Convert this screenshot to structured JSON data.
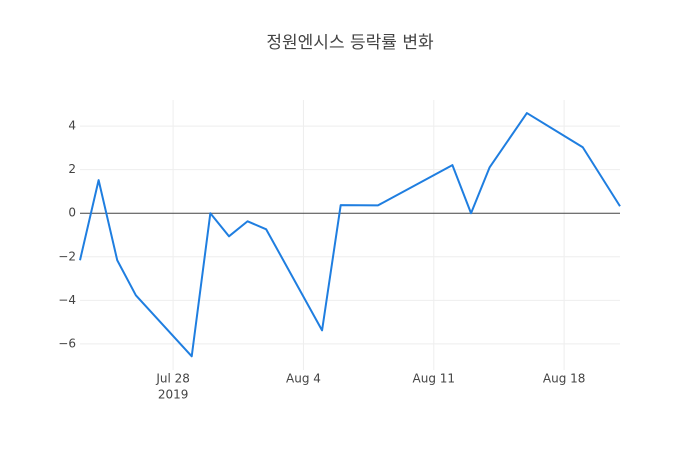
{
  "chart_data": {
    "type": "line",
    "title": "정원엔시스 등락률 변화",
    "x": [
      "2019-07-23",
      "2019-07-24",
      "2019-07-25",
      "2019-07-26",
      "2019-07-29",
      "2019-07-30",
      "2019-07-31",
      "2019-08-01",
      "2019-08-02",
      "2019-08-05",
      "2019-08-06",
      "2019-08-08",
      "2019-08-12",
      "2019-08-13",
      "2019-08-14",
      "2019-08-16",
      "2019-08-19",
      "2019-08-21"
    ],
    "series": [
      {
        "color": "#1f7ee0",
        "values": [
          -2.16,
          1.52,
          -2.16,
          -3.77,
          -6.57,
          0,
          -1.06,
          -0.37,
          -0.74,
          -5.38,
          0.37,
          0.36,
          2.21,
          0,
          2.11,
          4.6,
          3.03,
          0.32
        ]
      }
    ],
    "xlim": [
      "2019-07-23",
      "2019-08-21"
    ],
    "xticks": [
      {
        "value": "2019-07-28",
        "label": "Jul 28"
      },
      {
        "value": "2019-08-04",
        "label": "Aug 4"
      },
      {
        "value": "2019-08-11",
        "label": "Aug 11"
      },
      {
        "value": "2019-08-18",
        "label": "Aug 18"
      }
    ],
    "x_year_label": "2019",
    "ylim": [
      -7.2,
      5.2
    ],
    "yticks": [
      {
        "value": -6,
        "label": "−6"
      },
      {
        "value": -4,
        "label": "−4"
      },
      {
        "value": -2,
        "label": "−2"
      },
      0,
      2,
      4
    ],
    "grid": true
  }
}
